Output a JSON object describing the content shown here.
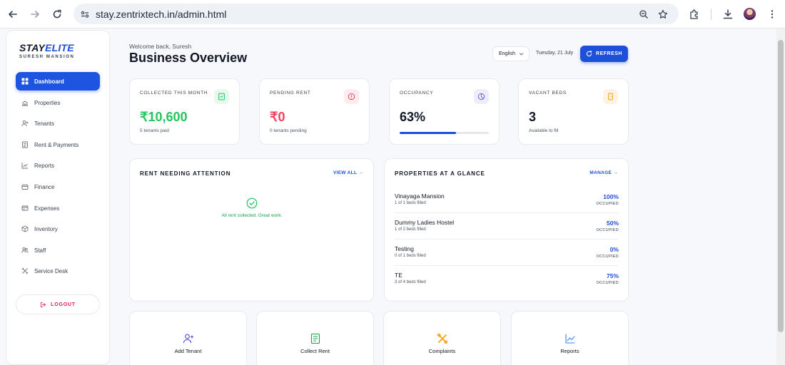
{
  "browser": {
    "url": "stay.zentrixtech.in/admin.html"
  },
  "sidebar": {
    "brand": {
      "name_part1": "STAY",
      "name_part2": "ELITE",
      "subtitle": "SURESH MANSION"
    },
    "items": [
      {
        "label": "Dashboard",
        "icon": "grid-icon",
        "active": true
      },
      {
        "label": "Properties",
        "icon": "building-icon"
      },
      {
        "label": "Tenants",
        "icon": "user-plus-icon"
      },
      {
        "label": "Rent & Payments",
        "icon": "receipt-icon"
      },
      {
        "label": "Reports",
        "icon": "trend-icon"
      },
      {
        "label": "Finance",
        "icon": "wallet-icon"
      },
      {
        "label": "Expenses",
        "icon": "card-icon"
      },
      {
        "label": "Inventory",
        "icon": "box-icon"
      },
      {
        "label": "Staff",
        "icon": "users-icon"
      },
      {
        "label": "Service Desk",
        "icon": "tools-icon"
      }
    ],
    "logout_label": "LOGOUT"
  },
  "header": {
    "welcome": "Welcome back, Suresh",
    "title": "Business Overview",
    "language": "English",
    "date": "Tuesday, 21 July",
    "refresh_label": "REFRESH"
  },
  "stats": [
    {
      "label": "COLLECTED THIS MONTH",
      "value": "₹10,600",
      "sub": "5 tenants paid",
      "color": "#22c55e",
      "icon": "receipt-icon"
    },
    {
      "label": "PENDING RENT",
      "value": "₹0",
      "sub": "0 tenants pending",
      "color": "#f43f5e",
      "icon": "alert-icon"
    },
    {
      "label": "OCCUPANCY",
      "value": "63%",
      "progress": 0.63,
      "color": "#111827",
      "icon": "pie-icon"
    },
    {
      "label": "VACANT BEDS",
      "value": "3",
      "sub": "Available to fill",
      "color": "#111827",
      "icon": "door-icon"
    }
  ],
  "rent_attention": {
    "title": "RENT NEEDING ATTENTION",
    "link": "VIEW ALL →",
    "empty_message": "All rent collected. Great work."
  },
  "properties": {
    "title": "PROPERTIES AT A GLANCE",
    "link": "MANAGE →",
    "occupied_label": "OCCUPIED",
    "rows": [
      {
        "name": "Vinayaga Mansion",
        "beds": "1 of 1 beds filled",
        "percent": "100%"
      },
      {
        "name": "Dummy Ladies Hostel",
        "beds": "1 of 2 beds filled",
        "percent": "50%"
      },
      {
        "name": "Testing",
        "beds": "0 of 1 beds filled",
        "percent": "0%"
      },
      {
        "name": "TE",
        "beds": "3 of 4 beds filled",
        "percent": "75%"
      }
    ]
  },
  "quick_actions": [
    {
      "label": "Add Tenant",
      "icon": "user-plus-icon",
      "color": "#4f46e5"
    },
    {
      "label": "Collect Rent",
      "icon": "receipt-icon",
      "color": "#16a34a"
    },
    {
      "label": "Complaints",
      "icon": "tools-icon",
      "color": "#f59e0b"
    },
    {
      "label": "Reports",
      "icon": "trend-icon",
      "color": "#3b82f6"
    }
  ]
}
